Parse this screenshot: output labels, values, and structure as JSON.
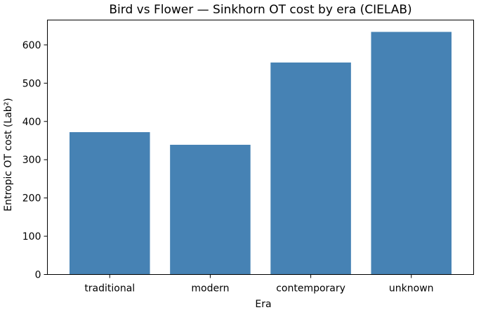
{
  "chart_data": {
    "type": "bar",
    "title": "Bird vs Flower — Sinkhorn OT cost by era (CIELAB)",
    "xlabel": "Era",
    "ylabel": "Entropic OT cost (Lab²)",
    "categories": [
      "traditional",
      "modern",
      "contemporary",
      "unknown"
    ],
    "values": [
      372,
      339,
      554,
      634
    ],
    "ylim": [
      0,
      665
    ],
    "yticks": [
      0,
      100,
      200,
      300,
      400,
      500,
      600
    ],
    "bar_color": "#4682b4",
    "grid": false,
    "legend": "none"
  }
}
